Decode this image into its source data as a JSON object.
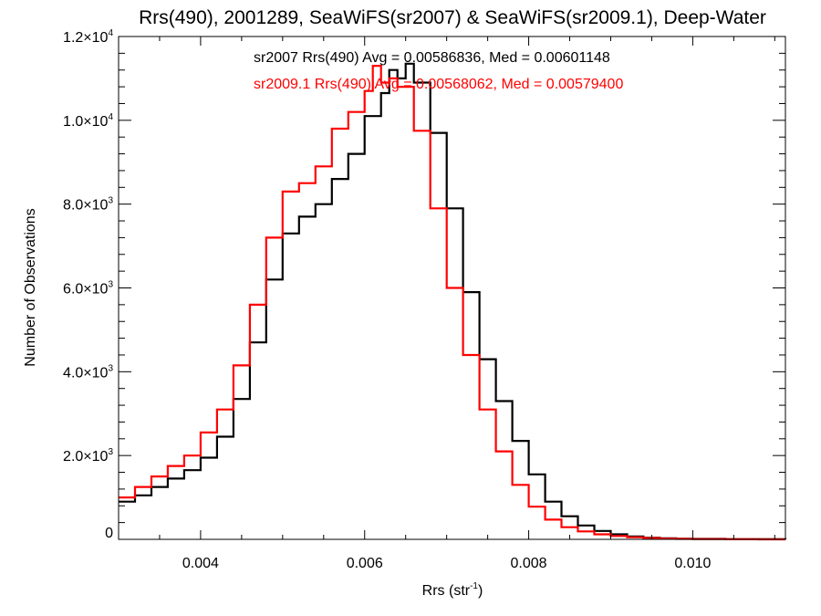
{
  "colors": {
    "series_sr2007": "#000000",
    "series_sr2009": "#ff0000",
    "axis": "#000000"
  },
  "chart_data": {
    "type": "line",
    "step": true,
    "title": "Rrs(490), 2001289, SeaWiFS(sr2007) & SeaWiFS(sr2009.1), Deep-Water",
    "xlabel_main": "Rrs (str",
    "xlabel_sup": "-1",
    "xlabel_end": ")",
    "ylabel": "Number of Observations",
    "xlim": [
      0.003,
      0.01113
    ],
    "ylim": [
      0,
      12000
    ],
    "xticks": [
      {
        "value": 0.004,
        "label": "0.004"
      },
      {
        "value": 0.006,
        "label": "0.006"
      },
      {
        "value": 0.008,
        "label": "0.008"
      },
      {
        "value": 0.01,
        "label": "0.010"
      }
    ],
    "yticks": [
      {
        "value": 0,
        "base": "0",
        "exp": ""
      },
      {
        "value": 2000,
        "base": "2.0×10",
        "exp": "3"
      },
      {
        "value": 4000,
        "base": "4.0×10",
        "exp": "3"
      },
      {
        "value": 6000,
        "base": "6.0×10",
        "exp": "3"
      },
      {
        "value": 8000,
        "base": "8.0×10",
        "exp": "3"
      },
      {
        "value": 10000,
        "base": "1.0×10",
        "exp": "4"
      },
      {
        "value": 12000,
        "base": "1.2×10",
        "exp": "4"
      }
    ],
    "grid": false,
    "annotations": [
      "sr2007 Rrs(490) Avg = 0.00586836, Med = 0.00601148",
      "sr2009.1 Rrs(490) Avg = 0.00568062, Med = 0.00579400"
    ],
    "series": [
      {
        "color": "#000000",
        "x": [
          0.003,
          0.0032,
          0.0034,
          0.0036,
          0.0038,
          0.004,
          0.0042,
          0.0044,
          0.0046,
          0.0048,
          0.005,
          0.0052,
          0.0054,
          0.0056,
          0.0058,
          0.006,
          0.0062,
          0.0063,
          0.0064,
          0.0065,
          0.0066,
          0.0068,
          0.007,
          0.0072,
          0.0074,
          0.0076,
          0.0078,
          0.008,
          0.0082,
          0.0084,
          0.0086,
          0.0088,
          0.009,
          0.0092,
          0.0094,
          0.0096,
          0.0098,
          0.01,
          0.0104,
          0.0108,
          0.01113
        ],
        "y": [
          900,
          1050,
          1250,
          1450,
          1650,
          1950,
          2450,
          3350,
          4700,
          6200,
          7300,
          7700,
          8000,
          8600,
          9200,
          10100,
          10650,
          11200,
          11000,
          11350,
          10900,
          9700,
          7900,
          5900,
          4300,
          3300,
          2350,
          1550,
          900,
          550,
          330,
          200,
          120,
          70,
          40,
          25,
          15,
          10,
          5,
          2,
          0
        ]
      },
      {
        "color": "#ff0000",
        "x": [
          0.003,
          0.0032,
          0.0034,
          0.0036,
          0.0038,
          0.004,
          0.0042,
          0.0044,
          0.0046,
          0.0048,
          0.005,
          0.0052,
          0.0054,
          0.0056,
          0.0058,
          0.006,
          0.0061,
          0.0062,
          0.0063,
          0.0064,
          0.0066,
          0.0068,
          0.007,
          0.0072,
          0.0074,
          0.0076,
          0.0078,
          0.008,
          0.0082,
          0.0084,
          0.0086,
          0.0088,
          0.009,
          0.0092,
          0.0094,
          0.0096,
          0.0098,
          0.01,
          0.0104,
          0.0108,
          0.01113
        ],
        "y": [
          1000,
          1250,
          1500,
          1750,
          2000,
          2550,
          3100,
          4150,
          5600,
          7200,
          8300,
          8500,
          8900,
          9800,
          10200,
          10700,
          11300,
          10900,
          11000,
          10800,
          9750,
          7900,
          6000,
          4400,
          3100,
          2100,
          1300,
          780,
          470,
          290,
          190,
          120,
          80,
          50,
          30,
          18,
          10,
          6,
          3,
          1,
          0
        ]
      }
    ]
  }
}
